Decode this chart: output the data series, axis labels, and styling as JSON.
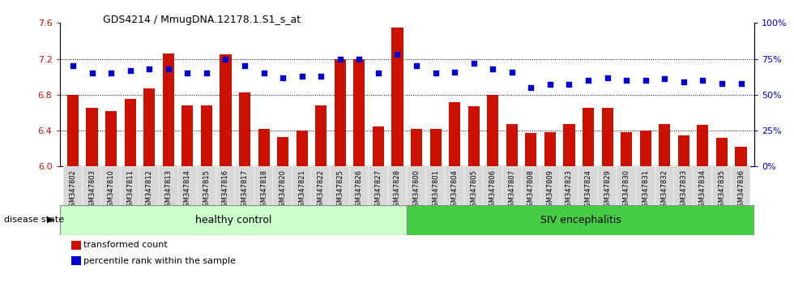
{
  "title": "GDS4214 / MmugDNA.12178.1.S1_s_at",
  "samples": [
    "GSM347802",
    "GSM347803",
    "GSM347810",
    "GSM347811",
    "GSM347812",
    "GSM347813",
    "GSM347814",
    "GSM347815",
    "GSM347816",
    "GSM347817",
    "GSM347818",
    "GSM347820",
    "GSM347821",
    "GSM347822",
    "GSM347825",
    "GSM347826",
    "GSM347827",
    "GSM347828",
    "GSM347800",
    "GSM347801",
    "GSM347804",
    "GSM347805",
    "GSM347806",
    "GSM347807",
    "GSM347808",
    "GSM347809",
    "GSM347823",
    "GSM347824",
    "GSM347829",
    "GSM347830",
    "GSM347831",
    "GSM347832",
    "GSM347833",
    "GSM347834",
    "GSM347835",
    "GSM347836"
  ],
  "bar_values": [
    6.8,
    6.65,
    6.62,
    6.75,
    6.87,
    7.26,
    6.68,
    6.68,
    7.25,
    6.83,
    6.42,
    6.33,
    6.4,
    6.68,
    7.2,
    7.2,
    6.45,
    7.55,
    6.42,
    6.42,
    6.72,
    6.67,
    6.8,
    6.47,
    6.37,
    6.38,
    6.47,
    6.65,
    6.65,
    6.38,
    6.4,
    6.47,
    6.35,
    6.46,
    6.32,
    6.22
  ],
  "percentile_values": [
    70,
    65,
    65,
    67,
    68,
    68,
    65,
    65,
    75,
    70,
    65,
    62,
    63,
    63,
    75,
    75,
    65,
    78,
    70,
    65,
    66,
    72,
    68,
    66,
    55,
    57,
    57,
    60,
    62,
    60,
    60,
    61,
    59,
    60,
    58,
    58
  ],
  "group1_label": "healthy control",
  "group2_label": "SIV encephalitis",
  "group1_count": 18,
  "group2_count": 18,
  "ylim_left": [
    6.0,
    7.6
  ],
  "ylim_right": [
    0,
    100
  ],
  "yticks_left": [
    6.0,
    6.4,
    6.8,
    7.2,
    7.6
  ],
  "yticks_right": [
    0,
    25,
    50,
    75,
    100
  ],
  "bar_color": "#cc1100",
  "dot_color": "#0000cc",
  "group1_bg": "#ccffcc",
  "group2_bg": "#44cc44",
  "label_bg": "#d8d8d8",
  "legend_bar_label": "transformed count",
  "legend_dot_label": "percentile rank within the sample",
  "disease_state_label": "disease state"
}
